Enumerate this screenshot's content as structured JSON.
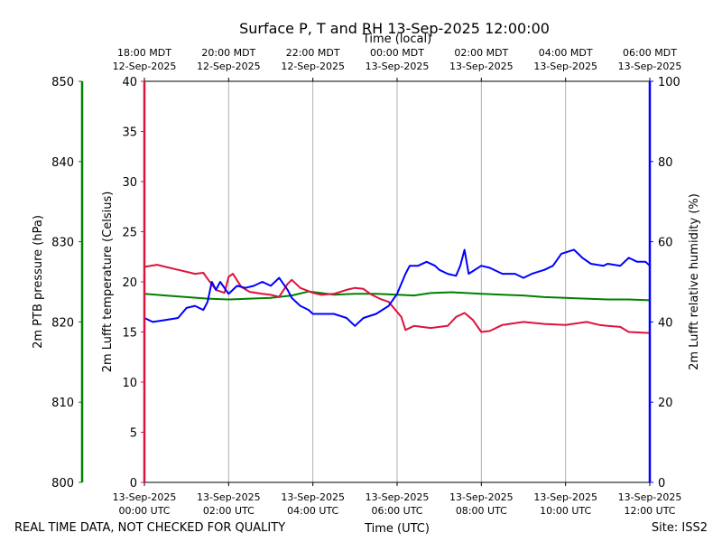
{
  "chart_data": {
    "type": "line",
    "title": "Surface P, T and RH 13-Sep-2025 12:00:00",
    "xlabel_bottom": "Time (UTC)",
    "xlabel_top": "Time (local)",
    "x_range_hours_utc": [
      0,
      12
    ],
    "bottom_ticks": [
      {
        "h": 0,
        "line1": "13-Sep-2025",
        "line2": "00:00 UTC"
      },
      {
        "h": 2,
        "line1": "13-Sep-2025",
        "line2": "02:00 UTC"
      },
      {
        "h": 4,
        "line1": "13-Sep-2025",
        "line2": "04:00 UTC"
      },
      {
        "h": 6,
        "line1": "13-Sep-2025",
        "line2": "06:00 UTC"
      },
      {
        "h": 8,
        "line1": "13-Sep-2025",
        "line2": "08:00 UTC"
      },
      {
        "h": 10,
        "line1": "13-Sep-2025",
        "line2": "10:00 UTC"
      },
      {
        "h": 12,
        "line1": "13-Sep-2025",
        "line2": "12:00 UTC"
      }
    ],
    "top_ticks": [
      {
        "h": 0,
        "line1": "18:00 MDT",
        "line2": "12-Sep-2025"
      },
      {
        "h": 2,
        "line1": "20:00 MDT",
        "line2": "12-Sep-2025"
      },
      {
        "h": 4,
        "line1": "22:00 MDT",
        "line2": "12-Sep-2025"
      },
      {
        "h": 6,
        "line1": "00:00 MDT",
        "line2": "13-Sep-2025"
      },
      {
        "h": 8,
        "line1": "02:00 MDT",
        "line2": "13-Sep-2025"
      },
      {
        "h": 10,
        "line1": "04:00 MDT",
        "line2": "13-Sep-2025"
      },
      {
        "h": 12,
        "line1": "06:00 MDT",
        "line2": "13-Sep-2025"
      }
    ],
    "axes": {
      "pressure": {
        "label": "2m PTB pressure (hPa)",
        "min": 800,
        "max": 850,
        "ticks": [
          800,
          810,
          820,
          830,
          840,
          850
        ],
        "color": "#008000"
      },
      "temperature": {
        "label": "2m Lufft temperature (Celsius)",
        "min": 0,
        "max": 40,
        "ticks": [
          0,
          5,
          10,
          15,
          20,
          25,
          30,
          35,
          40
        ],
        "color": "#dc143c"
      },
      "humidity": {
        "label": "2m Lufft relative humidity (%)",
        "min": 0,
        "max": 100,
        "ticks": [
          0,
          20,
          40,
          60,
          80,
          100
        ],
        "color": "#0000ff"
      }
    },
    "series": [
      {
        "name": "pressure",
        "axis": "pressure",
        "color": "#008000",
        "points": [
          [
            0,
            823.5
          ],
          [
            0.5,
            823.3
          ],
          [
            1,
            823.1
          ],
          [
            1.5,
            822.9
          ],
          [
            2,
            822.8
          ],
          [
            2.5,
            822.9
          ],
          [
            3,
            823
          ],
          [
            3.5,
            823.3
          ],
          [
            3.9,
            823.8
          ],
          [
            4.2,
            823.6
          ],
          [
            4.5,
            823.4
          ],
          [
            5,
            823.5
          ],
          [
            5.5,
            823.5
          ],
          [
            6,
            823.4
          ],
          [
            6.4,
            823.3
          ],
          [
            6.8,
            823.6
          ],
          [
            7.3,
            823.7
          ],
          [
            8,
            823.5
          ],
          [
            8.5,
            823.4
          ],
          [
            9,
            823.3
          ],
          [
            9.5,
            823.1
          ],
          [
            10,
            823
          ],
          [
            10.5,
            822.9
          ],
          [
            11,
            822.8
          ],
          [
            11.5,
            822.8
          ],
          [
            12,
            822.7
          ]
        ]
      },
      {
        "name": "temperature",
        "axis": "temperature",
        "color": "#dc143c",
        "points": [
          [
            0,
            21.5
          ],
          [
            0.3,
            21.7
          ],
          [
            0.5,
            21.5
          ],
          [
            0.8,
            21.2
          ],
          [
            1,
            21.0
          ],
          [
            1.2,
            20.8
          ],
          [
            1.4,
            20.9
          ],
          [
            1.5,
            20.3
          ],
          [
            1.7,
            19.2
          ],
          [
            1.9,
            18.9
          ],
          [
            2,
            20.5
          ],
          [
            2.1,
            20.8
          ],
          [
            2.3,
            19.5
          ],
          [
            2.5,
            19.0
          ],
          [
            2.8,
            18.8
          ],
          [
            3,
            18.7
          ],
          [
            3.2,
            18.5
          ],
          [
            3.4,
            19.8
          ],
          [
            3.5,
            20.2
          ],
          [
            3.7,
            19.4
          ],
          [
            4,
            18.9
          ],
          [
            4.2,
            18.7
          ],
          [
            4.5,
            18.8
          ],
          [
            4.8,
            19.2
          ],
          [
            5,
            19.4
          ],
          [
            5.2,
            19.3
          ],
          [
            5.4,
            18.7
          ],
          [
            5.6,
            18.3
          ],
          [
            5.8,
            18.0
          ],
          [
            6,
            17.0
          ],
          [
            6.1,
            16.5
          ],
          [
            6.2,
            15.2
          ],
          [
            6.4,
            15.6
          ],
          [
            6.8,
            15.4
          ],
          [
            7,
            15.5
          ],
          [
            7.2,
            15.6
          ],
          [
            7.4,
            16.5
          ],
          [
            7.6,
            16.9
          ],
          [
            7.8,
            16.2
          ],
          [
            8,
            15.0
          ],
          [
            8.2,
            15.1
          ],
          [
            8.5,
            15.7
          ],
          [
            9,
            16.0
          ],
          [
            9.5,
            15.8
          ],
          [
            10,
            15.7
          ],
          [
            10.5,
            16.0
          ],
          [
            10.8,
            15.7
          ],
          [
            11,
            15.6
          ],
          [
            11.3,
            15.5
          ],
          [
            11.5,
            15.0
          ],
          [
            12,
            14.9
          ]
        ]
      },
      {
        "name": "humidity",
        "axis": "humidity",
        "color": "#0000ff",
        "points": [
          [
            0,
            41
          ],
          [
            0.2,
            40
          ],
          [
            0.5,
            40.5
          ],
          [
            0.8,
            41
          ],
          [
            1,
            43.5
          ],
          [
            1.2,
            44
          ],
          [
            1.4,
            43
          ],
          [
            1.5,
            45
          ],
          [
            1.6,
            50
          ],
          [
            1.7,
            48
          ],
          [
            1.8,
            50
          ],
          [
            2,
            47
          ],
          [
            2.2,
            49
          ],
          [
            2.4,
            48.5
          ],
          [
            2.6,
            49
          ],
          [
            2.8,
            50
          ],
          [
            3,
            49
          ],
          [
            3.2,
            51
          ],
          [
            3.4,
            48
          ],
          [
            3.5,
            46
          ],
          [
            3.7,
            44
          ],
          [
            3.9,
            43
          ],
          [
            4,
            42
          ],
          [
            4.2,
            42
          ],
          [
            4.5,
            42
          ],
          [
            4.8,
            41
          ],
          [
            5,
            39
          ],
          [
            5.2,
            41
          ],
          [
            5.5,
            42
          ],
          [
            5.8,
            44
          ],
          [
            6,
            47
          ],
          [
            6.2,
            52
          ],
          [
            6.3,
            54
          ],
          [
            6.5,
            54
          ],
          [
            6.7,
            55
          ],
          [
            6.9,
            54
          ],
          [
            7,
            53
          ],
          [
            7.2,
            52
          ],
          [
            7.4,
            51.5
          ],
          [
            7.5,
            54
          ],
          [
            7.6,
            58
          ],
          [
            7.7,
            52
          ],
          [
            8,
            54
          ],
          [
            8.2,
            53.5
          ],
          [
            8.5,
            52
          ],
          [
            8.8,
            52
          ],
          [
            9,
            51
          ],
          [
            9.2,
            52
          ],
          [
            9.5,
            53
          ],
          [
            9.7,
            54
          ],
          [
            9.9,
            57
          ],
          [
            10.2,
            58
          ],
          [
            10.4,
            56
          ],
          [
            10.6,
            54.5
          ],
          [
            10.9,
            54
          ],
          [
            11,
            54.5
          ],
          [
            11.3,
            54
          ],
          [
            11.5,
            56
          ],
          [
            11.7,
            55
          ],
          [
            11.9,
            55
          ],
          [
            12,
            54
          ]
        ]
      }
    ]
  },
  "footer": {
    "left": "REAL TIME DATA, NOT CHECKED FOR QUALITY",
    "right": "Site: ISS2"
  }
}
